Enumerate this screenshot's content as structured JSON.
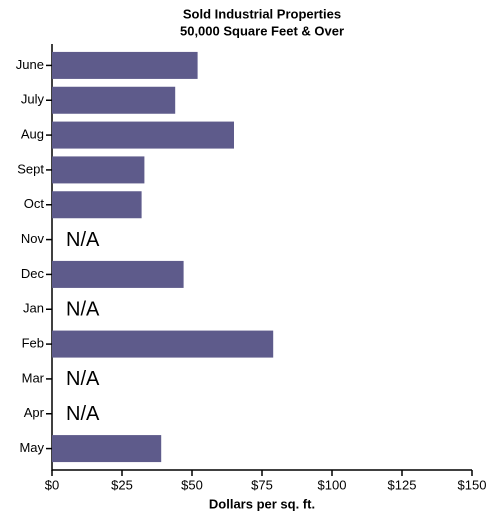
{
  "chart_data": {
    "type": "bar",
    "orientation": "horizontal",
    "title": "Sold Industrial Properties",
    "subtitle": "50,000 Square Feet & Over",
    "categories": [
      "June",
      "July",
      "Aug",
      "Sept",
      "Oct",
      "Nov",
      "Dec",
      "Jan",
      "Feb",
      "Mar",
      "Apr",
      "May"
    ],
    "values": [
      52,
      44,
      65,
      33,
      32,
      null,
      47,
      null,
      79,
      null,
      null,
      39
    ],
    "value_labels": [
      null,
      null,
      null,
      null,
      null,
      "N/A",
      null,
      "N/A",
      null,
      "N/A",
      "N/A",
      null
    ],
    "color": "#5e5b8b",
    "xlabel": "Dollars per sq. ft.",
    "xlim": [
      0,
      150
    ],
    "xticks": [
      {
        "value": 0,
        "label": "$0"
      },
      {
        "value": 25,
        "label": "$25"
      },
      {
        "value": 50,
        "label": "$50"
      },
      {
        "value": 75,
        "label": "$75"
      },
      {
        "value": 100,
        "label": "$100"
      },
      {
        "value": 125,
        "label": "$125"
      },
      {
        "value": 150,
        "label": "$150"
      }
    ],
    "grid": false
  }
}
